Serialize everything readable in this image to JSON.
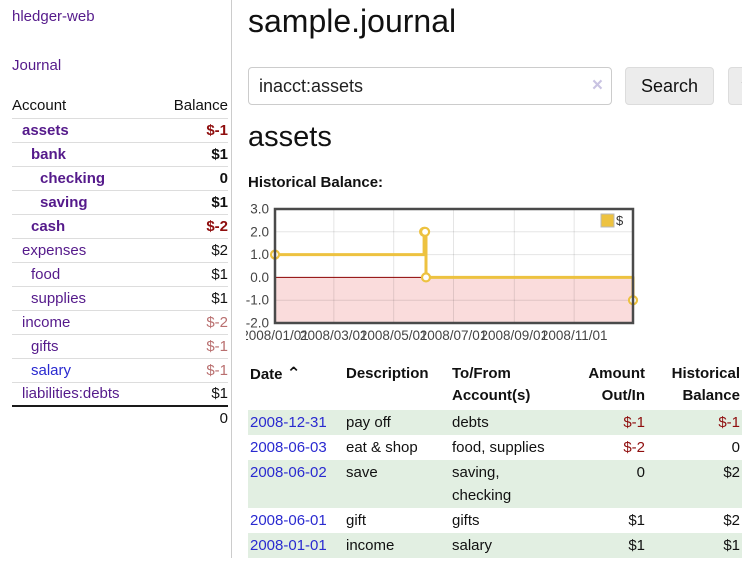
{
  "app": {
    "title": "hledger-web"
  },
  "sidebar": {
    "journal_link": "Journal",
    "headers": {
      "account": "Account",
      "balance": "Balance"
    },
    "accounts": [
      {
        "name": "assets",
        "balance": "$-1"
      },
      {
        "name": "bank",
        "balance": "$1"
      },
      {
        "name": "checking",
        "balance": "0"
      },
      {
        "name": "saving",
        "balance": "$1"
      },
      {
        "name": "cash",
        "balance": "$-2"
      },
      {
        "name": "expenses",
        "balance": "$2"
      },
      {
        "name": "food",
        "balance": "$1"
      },
      {
        "name": "supplies",
        "balance": "$1"
      },
      {
        "name": "income",
        "balance": "$-2"
      },
      {
        "name": "gifts",
        "balance": "$-1"
      },
      {
        "name": "salary",
        "balance": "$-1"
      },
      {
        "name": "liabilities:debts",
        "balance": "$1"
      }
    ],
    "total": "0"
  },
  "main": {
    "title": "sample.journal",
    "search": {
      "value": "inacct:assets",
      "clear_icon": "×",
      "button_label": "Search",
      "help_label": "?"
    },
    "account_heading": "assets",
    "chart_label": "Historical Balance:"
  },
  "chart_data": {
    "type": "line",
    "title": "Historical Balance",
    "series": [
      {
        "name": "$",
        "points": [
          [
            "2008-01-01",
            1
          ],
          [
            "2008-06-01",
            2
          ],
          [
            "2008-06-02",
            2
          ],
          [
            "2008-06-03",
            0
          ],
          [
            "2008-12-31",
            -1
          ]
        ]
      }
    ],
    "x_ticks": [
      "2008/01/01",
      "2008/03/01",
      "2008/05/01",
      "2008/07/01",
      "2008/09/01",
      "2008/11/01"
    ],
    "y_ticks": [
      3.0,
      2.0,
      1.0,
      0.0,
      -1.0,
      -2.0
    ],
    "xlim": [
      "2008-01-01",
      "2008-12-31"
    ],
    "ylim": [
      -2,
      3
    ],
    "legend_position": "top-right",
    "grid": true,
    "style": "steps",
    "line_color": "#edc240",
    "marker_fill": "#ffffff",
    "negative_region_fill": "#fadcdc",
    "zero_line_color": "#8b0000",
    "border_color": "#4a4a4a"
  },
  "register": {
    "headers": {
      "date": "Date",
      "sort_icon": "⌃",
      "description": "Description",
      "accounts": "To/From Account(s)",
      "amount": "Amount Out/In",
      "balance": "Historical Balance"
    },
    "rows": [
      {
        "date": "2008-12-31",
        "description": "pay off",
        "accounts": "debts",
        "amount": "$-1",
        "balance": "$-1"
      },
      {
        "date": "2008-06-03",
        "description": "eat & shop",
        "accounts": "food, supplies",
        "amount": "$-2",
        "balance": "0"
      },
      {
        "date": "2008-06-02",
        "description": "save",
        "accounts": "saving,\nchecking",
        "amount": "0",
        "balance": "$2"
      },
      {
        "date": "2008-06-01",
        "description": "gift",
        "accounts": "gifts",
        "amount": "$1",
        "balance": "$2"
      },
      {
        "date": "2008-01-01",
        "description": "income",
        "accounts": "salary",
        "amount": "$1",
        "balance": "$1"
      }
    ]
  },
  "colors": {
    "link_purple": "#551a8b",
    "link_blue": "#2a2ad0",
    "negative": "#8f0e0e",
    "negative_soft": "#b96f6f",
    "row_stripe_green": "#e2efe2",
    "chart_gold": "#edc240"
  }
}
